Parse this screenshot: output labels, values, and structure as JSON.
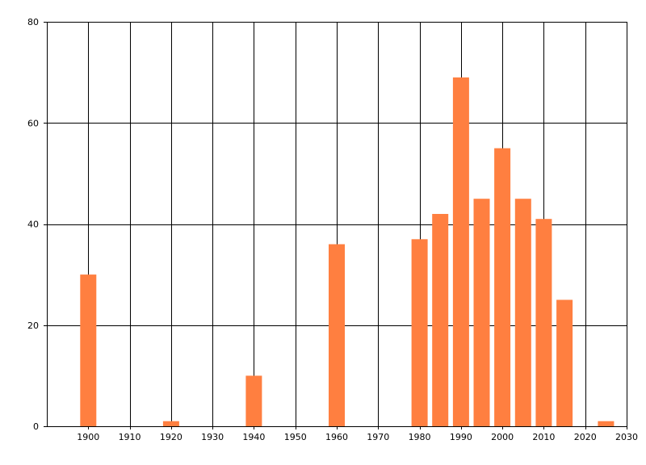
{
  "chart_data": {
    "type": "bar",
    "x": [
      1900,
      1920,
      1940,
      1960,
      1980,
      1985,
      1990,
      1995,
      2000,
      2005,
      2010,
      2015,
      2025
    ],
    "values": [
      30,
      1,
      10,
      36,
      37,
      42,
      69,
      45,
      55,
      45,
      41,
      25,
      1
    ],
    "xlim": [
      1890,
      2030
    ],
    "ylim": [
      0,
      80
    ],
    "x_ticks": [
      "1900",
      "1910",
      "1920",
      "1930",
      "1940",
      "1950",
      "1960",
      "1970",
      "1980",
      "1990",
      "2000",
      "2010",
      "2020",
      "2030"
    ],
    "y_ticks": [
      "0",
      "20",
      "40",
      "60",
      "80"
    ],
    "title": "",
    "xlabel": "",
    "ylabel": "",
    "grid": true,
    "bar_color": "#FF7F40"
  }
}
